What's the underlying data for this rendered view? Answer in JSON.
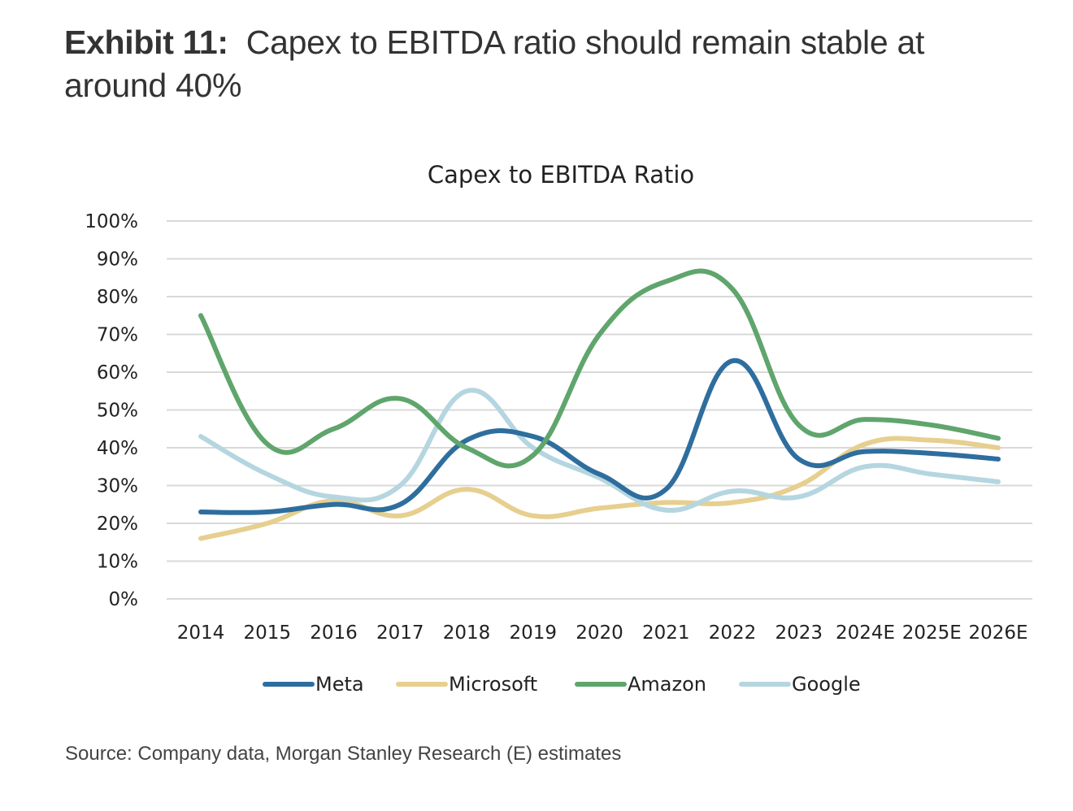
{
  "header": {
    "exhibit_label": "Exhibit 11:",
    "exhibit_title": "Capex to EBITDA ratio should remain stable at around 40%"
  },
  "footer": {
    "source": "Source: Company data, Morgan Stanley Research (E) estimates"
  },
  "chart_data": {
    "type": "line",
    "title": "Capex to EBITDA Ratio",
    "xlabel": "",
    "ylabel": "",
    "categories": [
      "2014",
      "2015",
      "2016",
      "2017",
      "2018",
      "2019",
      "2020",
      "2021",
      "2022",
      "2023",
      "2024E",
      "2025E",
      "2026E"
    ],
    "ylim": [
      0,
      100
    ],
    "yticks": [
      0,
      10,
      20,
      30,
      40,
      50,
      60,
      70,
      80,
      90,
      100
    ],
    "ytick_labels": [
      "0%",
      "10%",
      "20%",
      "30%",
      "40%",
      "50%",
      "60%",
      "70%",
      "80%",
      "90%",
      "100%"
    ],
    "grid": true,
    "smooth": true,
    "legend_position": "bottom",
    "series": [
      {
        "name": "Meta",
        "color": "#2e6e9e",
        "values": [
          23,
          23,
          25,
          25,
          42,
          43,
          33,
          29,
          63,
          37,
          39,
          38.5,
          37
        ]
      },
      {
        "name": "Microsoft",
        "color": "#e6cf8f",
        "values": [
          16,
          20,
          26,
          22,
          29,
          22,
          24,
          25.5,
          25.5,
          30,
          41,
          42,
          40
        ]
      },
      {
        "name": "Amazon",
        "color": "#5fa56c",
        "values": [
          75,
          41,
          45,
          53,
          40,
          38,
          70,
          84,
          82,
          46,
          47.5,
          46,
          42.5
        ]
      },
      {
        "name": "Google",
        "color": "#b5d6e0",
        "values": [
          43,
          33,
          27,
          30,
          55,
          40,
          32,
          23.5,
          28.5,
          27,
          35,
          33,
          31
        ]
      }
    ]
  }
}
